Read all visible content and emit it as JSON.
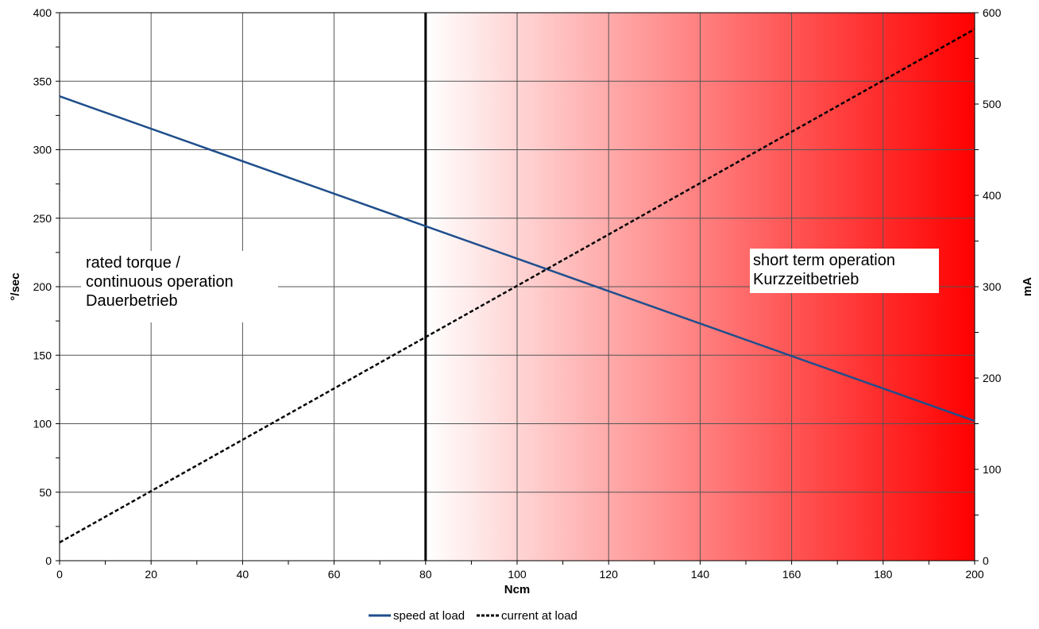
{
  "chart_data": {
    "type": "line",
    "xlabel": "Ncm",
    "ylabel": "°/sec",
    "y2label": "mA",
    "xlim": [
      0,
      200
    ],
    "ylim": [
      0,
      400
    ],
    "y2lim": [
      0,
      600
    ],
    "x_ticks": [
      0,
      20,
      40,
      60,
      80,
      100,
      120,
      140,
      160,
      180,
      200
    ],
    "y_ticks": [
      0,
      50,
      100,
      150,
      200,
      250,
      300,
      350,
      400
    ],
    "y2_ticks": [
      0,
      100,
      200,
      300,
      400,
      500,
      600
    ],
    "grid": true,
    "legend": "bottom",
    "series": [
      {
        "name": "speed at load",
        "axis": "left",
        "style": "solid",
        "color": "#1f4e8c",
        "x": [
          0,
          200
        ],
        "y": [
          339,
          102
        ]
      },
      {
        "name": "current at load",
        "axis": "right",
        "style": "dashed",
        "color": "#000000",
        "x": [
          0,
          200
        ],
        "y": [
          20,
          582
        ]
      }
    ],
    "regions": [
      {
        "from": 0,
        "to": 80,
        "color": "#ffffff",
        "lines": [
          "rated torque /",
          "continuous operation",
          "Dauerbetrieb"
        ]
      },
      {
        "from": 80,
        "to": 200,
        "color": "#ff0000",
        "gradient": true,
        "lines": [
          "short term operation",
          "Kurzzeitbetrieb"
        ]
      }
    ],
    "threshold_x": 80
  }
}
